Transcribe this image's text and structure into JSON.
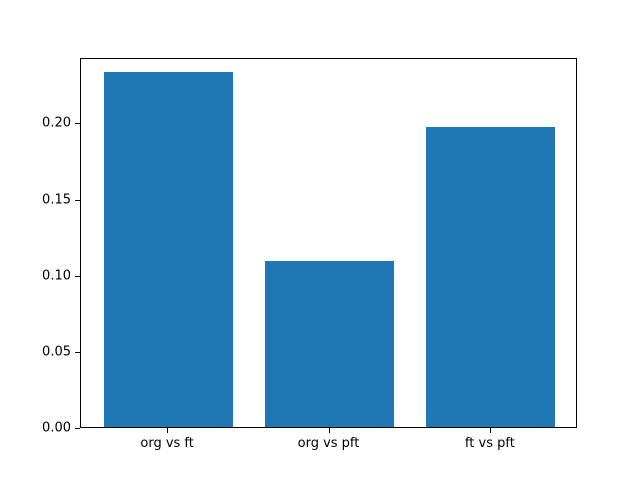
{
  "chart_data": {
    "type": "bar",
    "categories": [
      "org vs ft",
      "org vs pft",
      "ft vs pft"
    ],
    "values": [
      0.233,
      0.109,
      0.197
    ],
    "title": "",
    "xlabel": "",
    "ylabel": "",
    "ylim": [
      0,
      0.243
    ],
    "xlim": [
      -0.54,
      2.54
    ],
    "bar_width_units": 0.8,
    "yticks": [
      0.0,
      0.05,
      0.1,
      0.15,
      0.2
    ],
    "ytick_labels": [
      "0.00",
      "0.05",
      "0.10",
      "0.15",
      "0.20"
    ],
    "bar_color": "#1f77b4",
    "background_color": "#ffffff",
    "spine_color": "#000000",
    "grid": false,
    "legend": null
  }
}
